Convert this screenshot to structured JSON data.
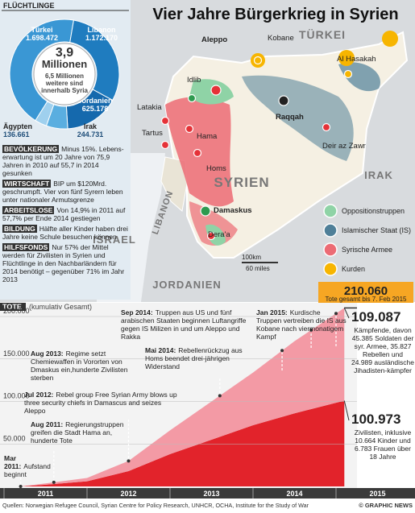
{
  "title": "Vier Jahre Bürgerkrieg in Syrien",
  "chart_data": [
    {
      "type": "pie",
      "title": "FLÜCHTLINGE",
      "categories": [
        "Türkei",
        "Libanon",
        "Jordanien",
        "Irak",
        "Ägypten"
      ],
      "values": [
        1698472,
        1172170,
        625178,
        244731,
        136661
      ],
      "value_labels": [
        "1.698.472",
        "1.172.170",
        "625.178",
        "244.731",
        "136.661"
      ],
      "colors": [
        "#3a97d4",
        "#1f7cbf",
        "#1569ad",
        "#5aaee0",
        "#9fd0ee"
      ],
      "center_value": "3,9",
      "center_unit": "Millionen",
      "center_note": "6,5 Millionen weitere sind innerhalb Syria"
    },
    {
      "type": "area",
      "title": "TOTE",
      "subtitle": "(kumulativ Gesamt)",
      "stacked": true,
      "x": [
        2011.2,
        2011.5,
        2012.0,
        2012.5,
        2013.0,
        2013.5,
        2014.0,
        2014.5,
        2015.1
      ],
      "xlim": [
        2011,
        2015.25
      ],
      "xticks": [
        2011,
        2012,
        2013,
        2014,
        2015
      ],
      "ylim": [
        0,
        200000
      ],
      "yticks": [
        {
          "value": 50000,
          "label": "50.000"
        },
        {
          "value": 100000,
          "label": "100.000"
        },
        {
          "value": 150000,
          "label": "150.000"
        },
        {
          "value": 200000,
          "label": "200.000"
        }
      ],
      "grid": true,
      "series": [
        {
          "color": "#e2232b",
          "values": [
            0,
            2000,
            6000,
            18000,
            38000,
            55000,
            72000,
            86000,
            100973
          ],
          "value_labels": [
            null,
            null,
            null,
            null,
            null,
            null,
            null,
            null,
            "100.973"
          ],
          "note": "Zivilisten, inklusive 10.664 Kinder und 6.783 Frauen über 18 Jahre"
        },
        {
          "color": "#f39aa5",
          "values": [
            0,
            1500,
            4000,
            12000,
            28000,
            45000,
            62000,
            85000,
            109087
          ],
          "value_labels": [
            null,
            null,
            null,
            null,
            null,
            null,
            null,
            null,
            "109.087"
          ],
          "note": "Kämpfende, davon 45.385 Soldaten der syr. Armee, 35.827 Rebellen und 24.989 ausländische Jihadisten-kämpfer"
        }
      ],
      "total": {
        "value": 210060,
        "label": "210.060"
      },
      "total_note": "Tote gesamt bis 7. Feb 2015",
      "annotations": [
        {
          "x": 2011.2,
          "label": "Mar 2011:",
          "text": "Aufstand beginnt"
        },
        {
          "x": 2011.6,
          "label": "Aug 2011:",
          "text": "Regierungstruppen greifen die Stadt Hama an, hunderte Tote"
        },
        {
          "x": 2012.5,
          "label": "Jul 2012:",
          "text": "Rebel group Free Syrian Army blows up three security chiefs in Damascus and seizes Aleppo"
        },
        {
          "x": 2013.6,
          "label": "Aug 2013:",
          "text": "Regime setzt Chemiewaffen in Vororten von Dmaskus ein,hunderte Zivilisten sterben"
        },
        {
          "x": 2014.35,
          "label": "Mai 2014:",
          "text": "Rebellenrückzug aus Homs beendet drei-jährigen Widerstand"
        },
        {
          "x": 2014.7,
          "label": "Sep 2014:",
          "text": "Truppen aus US und fünf arabischen Staaten beginnen Luftangriffe gegen IS Milizen in und um Aleppo und Rakka"
        },
        {
          "x": 2015.0,
          "label": "Jan 2015:",
          "text": "Kurdische Truppen vertreiben die IS aus Kobane nach viermonatigem Kampf"
        }
      ]
    }
  ],
  "facts": [
    {
      "label": "BEVÖLKERUNG",
      "text": "Minus 15%. Lebens-erwartung ist um 20 Jahre von 75,9 Jahren in 2010 auf 55,7 in 2014 gesunken"
    },
    {
      "label": "WIRTSCHAFT",
      "text": "BIP um $120Mrd. geschrumpft. Vier von fünf Syrern leben unter nationaler Armutsgrenze"
    },
    {
      "label": "ARBEITSLOSE",
      "text": "Von 14,9% in 2011 auf 57,7% per Ende 2014 gestiegen"
    },
    {
      "label": "BILDUNG",
      "text": "Hälfte aller Kinder haben drei Jahre keine Schule besuchen können"
    },
    {
      "label": "HILFSFONDS",
      "text": "Nur 57% der Mittel werden für Zivilisten in Syrien und Flüchtlinge in den Nachbarländern für 2014 benötigt – gegenüber 71% im Jahr 2013"
    }
  ],
  "map": {
    "regions": [
      "TÜRKEI",
      "SYRIEN",
      "IRAK",
      "LIBANON",
      "ISRAEL",
      "JORDANIEN"
    ],
    "cities": [
      "Aleppo",
      "Kobane",
      "Idlib",
      "Al Hasakah",
      "Latakia",
      "Raqqah",
      "Tartus",
      "Hama",
      "Deir az Zawr",
      "Homs",
      "Damaskus",
      "Dera'a"
    ],
    "legend": [
      {
        "label": "Oppositionstruppen",
        "color": "#8fd3a6"
      },
      {
        "label": "Islamischer Staat (IS)",
        "color": "#4f7f98"
      },
      {
        "label": "Syrische Armee",
        "color": "#ec6b74"
      },
      {
        "label": "Kurden",
        "color": "#f7b500"
      }
    ],
    "scale_km": "100km",
    "scale_mi": "60 miles"
  },
  "sources": "Quellen: Norwegian Refugee Council, Syrian Centre for Policy Research, UNHCR, OCHA, Institute for the Study of War",
  "credit": "© GRAPHIC NEWS"
}
